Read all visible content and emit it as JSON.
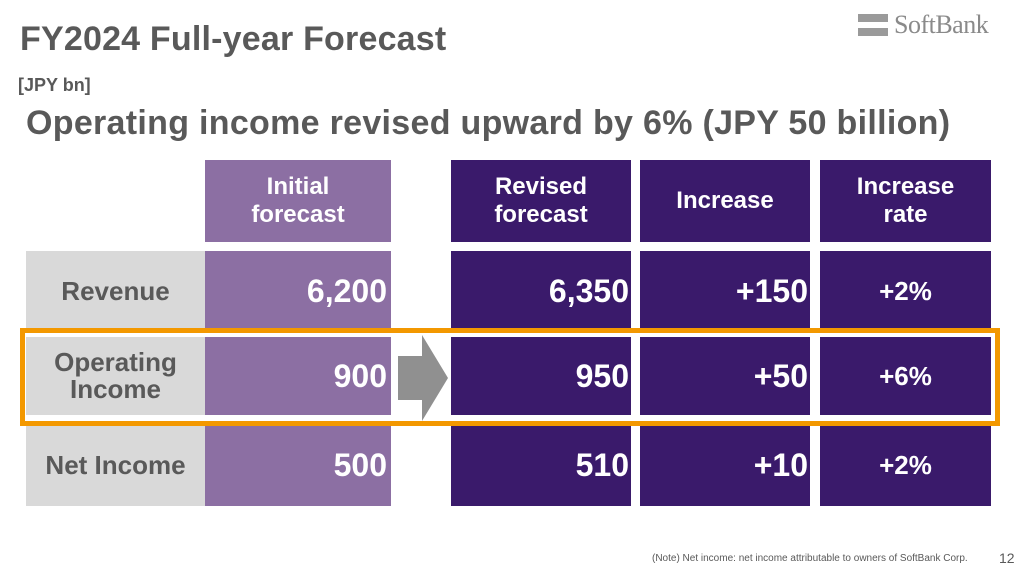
{
  "slide": {
    "title": "FY2024 Full-year Forecast",
    "unit": "[JPY bn]",
    "headline": "Operating income revised upward by 6% (JPY 50 billion)",
    "logo": "SoftBank",
    "note": "(Note) Net income: net income attributable to owners of SoftBank Corp.",
    "page_number": "12"
  },
  "table": {
    "headers": {
      "initial": [
        "Initial",
        "forecast"
      ],
      "revised": [
        "Revised",
        "forecast"
      ],
      "increase": "Increase",
      "rate": [
        "Increase",
        "rate"
      ]
    },
    "rows": [
      {
        "label": [
          "Revenue"
        ],
        "initial": "6,200",
        "revised": "6,350",
        "increase": "+150",
        "rate": "+2%"
      },
      {
        "label": [
          "Operating",
          "Income"
        ],
        "initial": "900",
        "revised": "950",
        "increase": "+50",
        "rate": "+6%"
      },
      {
        "label": [
          "Net Income"
        ],
        "initial": "500",
        "revised": "510",
        "increase": "+10",
        "rate": "+2%"
      }
    ]
  },
  "colors": {
    "initial": "#8c6fa3",
    "revised": "#3a1a6b",
    "label_bg": "#d9d9d9",
    "highlight": "#f39800",
    "text": "#595959"
  }
}
